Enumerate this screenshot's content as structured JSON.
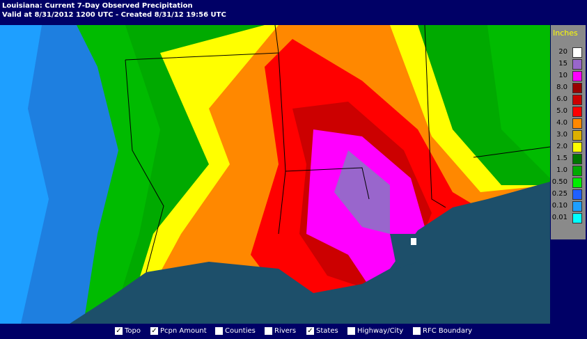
{
  "header": {
    "title": "Louisiana: Current 7-Day Observed Precipitation",
    "subtitle": "Valid at 8/31/2012 1200 UTC - Created 8/31/12 19:56 UTC"
  },
  "legend": {
    "title": "Inches",
    "items": [
      {
        "label": "20",
        "color": "#ffffff"
      },
      {
        "label": "15",
        "color": "#9966cc"
      },
      {
        "label": "10",
        "color": "#ff00ff"
      },
      {
        "label": "8.0",
        "color": "#990000"
      },
      {
        "label": "6.0",
        "color": "#cc0000"
      },
      {
        "label": "5.0",
        "color": "#ff0000"
      },
      {
        "label": "4.0",
        "color": "#ff8800"
      },
      {
        "label": "3.0",
        "color": "#ddb000"
      },
      {
        "label": "2.0",
        "color": "#ffff00"
      },
      {
        "label": "1.5",
        "color": "#007700"
      },
      {
        "label": "1.0",
        "color": "#00aa00"
      },
      {
        "label": "0.50",
        "color": "#00ee00"
      },
      {
        "label": "0.25",
        "color": "#2060ff"
      },
      {
        "label": "0.10",
        "color": "#1e9fff"
      },
      {
        "label": "0.01",
        "color": "#00ffff"
      }
    ]
  },
  "layers": [
    {
      "label": "Topo",
      "checked": true
    },
    {
      "label": "Pcpn Amount",
      "checked": true
    },
    {
      "label": "Counties",
      "checked": false
    },
    {
      "label": "Rivers",
      "checked": false
    },
    {
      "label": "States",
      "checked": true
    },
    {
      "label": "Highway/City",
      "checked": false
    },
    {
      "label": "RFC Boundary",
      "checked": false
    }
  ]
}
